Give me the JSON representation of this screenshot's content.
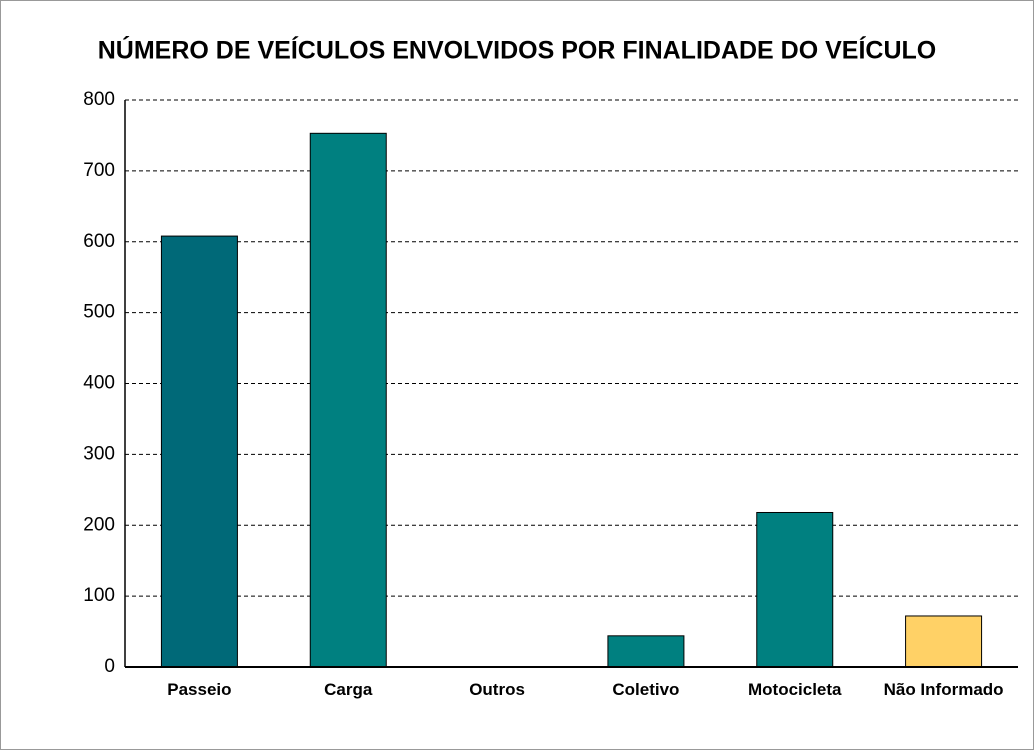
{
  "chart_data": {
    "type": "bar",
    "title": "NÚMERO DE VEÍCULOS ENVOLVIDOS POR FINALIDADE DO VEÍCULO",
    "categories": [
      "Passeio",
      "Carga",
      "Outros",
      "Coletivo",
      "Motocicleta",
      "Não Informado"
    ],
    "values": [
      608,
      753,
      0,
      44,
      218,
      72
    ],
    "colors": [
      "#006978",
      "#008080",
      "#008080",
      "#008080",
      "#008080",
      "#ffd166"
    ],
    "ylim": [
      0,
      800
    ],
    "yticks": [
      0,
      100,
      200,
      300,
      400,
      500,
      600,
      700,
      800
    ],
    "grid": true
  }
}
